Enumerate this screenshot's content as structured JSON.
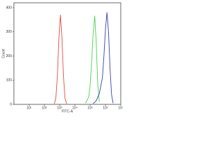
{
  "chart_data": {
    "type": "line",
    "xlabel": "FITC-A",
    "ylabel": "Count",
    "xscale": "log",
    "xlim": [
      1,
      10000000
    ],
    "ylim": [
      0,
      420
    ],
    "xticks": [
      {
        "value": 10,
        "label": "10¹"
      },
      {
        "value": 100,
        "label": "10²"
      },
      {
        "value": 1000,
        "label": "10³"
      },
      {
        "value": 10000,
        "label": "10⁴"
      },
      {
        "value": 100000,
        "label": "10⁵"
      },
      {
        "value": 1000000,
        "label": "10⁶"
      },
      {
        "value": 10000000,
        "label": "10⁷"
      }
    ],
    "yticks": [
      0,
      100,
      200,
      300,
      400
    ],
    "series": [
      {
        "color": "#e8473f",
        "x": [
          447,
          562,
          708,
          891,
          1122,
          1413,
          1778,
          2239,
          2818
        ],
        "values": [
          3,
          26,
          115,
          274,
          370,
          274,
          115,
          26,
          3
        ]
      },
      {
        "color": "#4bd04b",
        "x": [
          50119,
          79433,
          100000,
          125893,
          158489,
          199526,
          251189,
          316228,
          398107
        ],
        "values": [
          5,
          30,
          80,
          180,
          300,
          365,
          250,
          80,
          10
        ]
      },
      {
        "color": "#3340b0",
        "x": [
          158489,
          251189,
          398107,
          630957,
          794328,
          1000000,
          1258925,
          1584893,
          1995262,
          2511886,
          3162278
        ],
        "values": [
          3,
          15,
          45,
          110,
          200,
          310,
          380,
          300,
          150,
          40,
          5
        ]
      }
    ]
  }
}
